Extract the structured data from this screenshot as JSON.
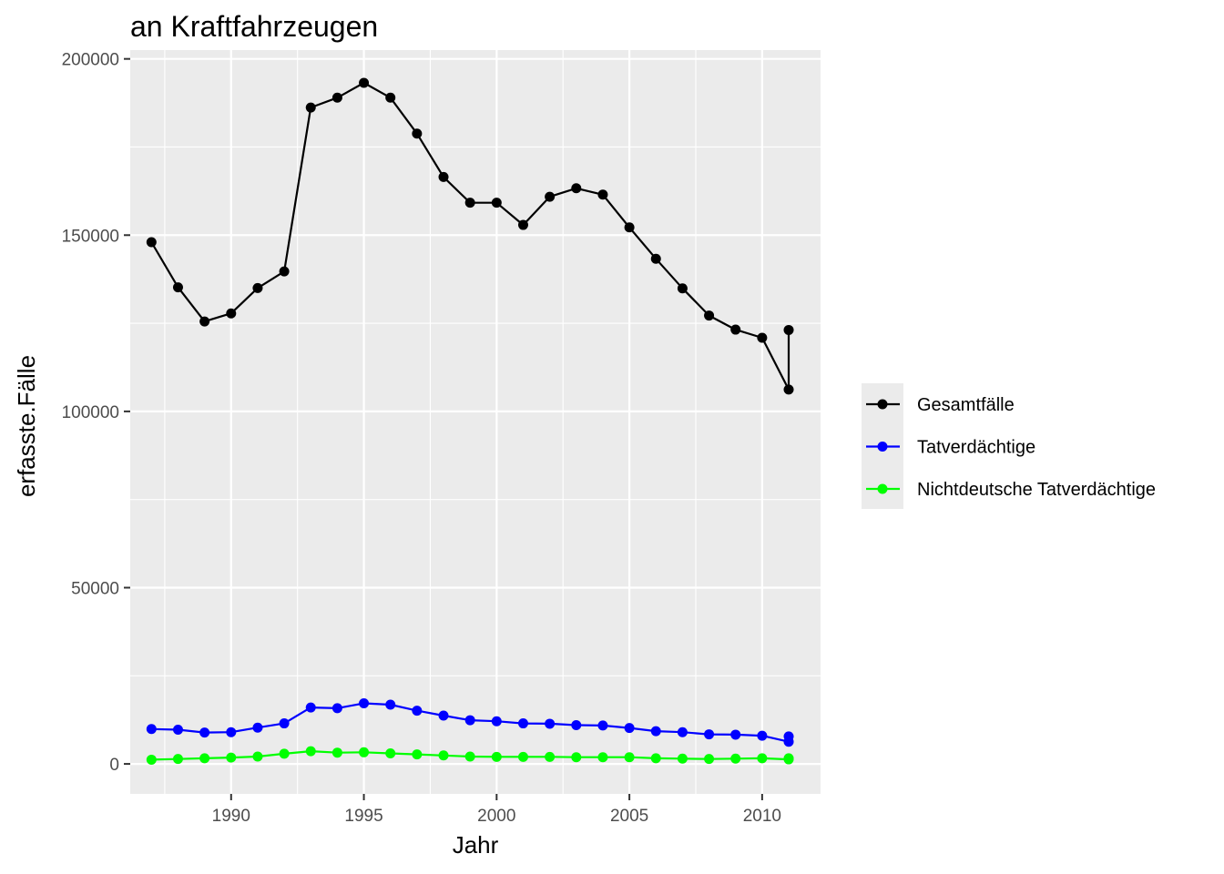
{
  "chart_data": {
    "type": "line",
    "title": "an Kraftfahrzeugen",
    "xlabel": "Jahr",
    "ylabel": "erfasste.Fälle",
    "xlim": [
      1986.2,
      2012.2
    ],
    "ylim": [
      -8500,
      202500
    ],
    "x_ticks": [
      1990,
      1995,
      2000,
      2005,
      2010
    ],
    "x_tick_labels": [
      "1990",
      "1995",
      "2000",
      "2005",
      "2010"
    ],
    "y_ticks": [
      0,
      50000,
      100000,
      150000,
      200000
    ],
    "y_tick_labels": [
      "0",
      "50000",
      "100000",
      "150000",
      "200000"
    ],
    "grid": true,
    "panel_background": "#ebebeb",
    "legend_position": "right",
    "series": [
      {
        "name": "Gesamtfälle",
        "color": "#000000",
        "points": [
          [
            1987,
            148000
          ],
          [
            1988,
            135200
          ],
          [
            1989,
            125500
          ],
          [
            1990,
            127800
          ],
          [
            1991,
            135000
          ],
          [
            1992,
            139700
          ],
          [
            1993,
            186200
          ],
          [
            1994,
            189000
          ],
          [
            1995,
            193200
          ],
          [
            1996,
            189000
          ],
          [
            1997,
            178800
          ],
          [
            1998,
            166500
          ],
          [
            1999,
            159200
          ],
          [
            2000,
            159200
          ],
          [
            2001,
            152900
          ],
          [
            2002,
            160900
          ],
          [
            2003,
            163300
          ],
          [
            2004,
            161500
          ],
          [
            2005,
            152200
          ],
          [
            2006,
            143300
          ],
          [
            2007,
            134900
          ],
          [
            2008,
            127200
          ],
          [
            2009,
            123200
          ],
          [
            2010,
            120900
          ],
          [
            2011,
            106200
          ],
          [
            2011,
            123100
          ]
        ]
      },
      {
        "name": "Tatverdächtige",
        "color": "#0000ff",
        "points": [
          [
            1987,
            9900
          ],
          [
            1988,
            9700
          ],
          [
            1989,
            8900
          ],
          [
            1990,
            9000
          ],
          [
            1991,
            10300
          ],
          [
            1992,
            11500
          ],
          [
            1993,
            16000
          ],
          [
            1994,
            15800
          ],
          [
            1995,
            17200
          ],
          [
            1996,
            16800
          ],
          [
            1997,
            15100
          ],
          [
            1998,
            13700
          ],
          [
            1999,
            12400
          ],
          [
            2000,
            12100
          ],
          [
            2001,
            11500
          ],
          [
            2002,
            11400
          ],
          [
            2003,
            11000
          ],
          [
            2004,
            10900
          ],
          [
            2005,
            10200
          ],
          [
            2006,
            9300
          ],
          [
            2007,
            9000
          ],
          [
            2008,
            8400
          ],
          [
            2009,
            8300
          ],
          [
            2010,
            8000
          ],
          [
            2011,
            6300
          ],
          [
            2011,
            7800
          ]
        ]
      },
      {
        "name": "Nichtdeutsche Tatverdächtige",
        "color": "#00ff00",
        "points": [
          [
            1987,
            1200
          ],
          [
            1988,
            1400
          ],
          [
            1989,
            1600
          ],
          [
            1990,
            1800
          ],
          [
            1991,
            2100
          ],
          [
            1992,
            2900
          ],
          [
            1993,
            3600
          ],
          [
            1994,
            3200
          ],
          [
            1995,
            3300
          ],
          [
            1996,
            3000
          ],
          [
            1997,
            2700
          ],
          [
            1998,
            2400
          ],
          [
            1999,
            2100
          ],
          [
            2000,
            2000
          ],
          [
            2001,
            2000
          ],
          [
            2002,
            2000
          ],
          [
            2003,
            1900
          ],
          [
            2004,
            1900
          ],
          [
            2005,
            1900
          ],
          [
            2006,
            1600
          ],
          [
            2007,
            1500
          ],
          [
            2008,
            1400
          ],
          [
            2009,
            1500
          ],
          [
            2010,
            1600
          ],
          [
            2011,
            1300
          ],
          [
            2011,
            1600
          ]
        ]
      }
    ]
  }
}
